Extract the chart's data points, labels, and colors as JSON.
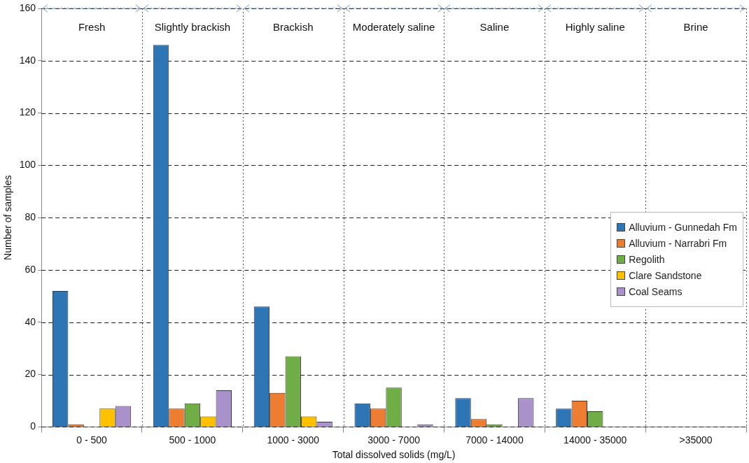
{
  "chart_data": {
    "type": "bar",
    "xlabel": "Total dissolved solids (mg/L)",
    "ylabel": "Number of samples",
    "categories": [
      "0 - 500",
      "500 - 1000",
      "1000 - 3000",
      "3000 - 7000",
      "7000 - 14000",
      "14000 - 35000",
      ">35000"
    ],
    "series": [
      {
        "name": "Alluvium - Gunnedah Fm",
        "color": "#2e75b6",
        "values": [
          52,
          146,
          46,
          9,
          11,
          7,
          0
        ]
      },
      {
        "name": "Alluvium - Narrabri Fm",
        "color": "#ed7d31",
        "values": [
          1,
          7,
          13,
          7,
          3,
          10,
          0
        ]
      },
      {
        "name": "Regolith",
        "color": "#70ad47",
        "values": [
          0,
          9,
          27,
          15,
          1,
          6,
          0
        ]
      },
      {
        "name": "Clare Sandstone",
        "color": "#ffc000",
        "values": [
          7,
          4,
          4,
          0,
          0,
          0,
          0
        ]
      },
      {
        "name": "Coal Seams",
        "color": "#a992c9",
        "values": [
          8,
          14,
          2,
          1,
          11,
          0,
          0
        ]
      }
    ],
    "ylim": [
      0,
      160
    ],
    "yticks": [
      0,
      20,
      40,
      60,
      80,
      100,
      120,
      140,
      160
    ],
    "grid": true,
    "legend": "right",
    "annotations": [
      "Fresh",
      "Slightly brackish",
      "Brackish",
      "Moderately saline",
      "Saline",
      "Highly saline",
      "Brine"
    ]
  }
}
